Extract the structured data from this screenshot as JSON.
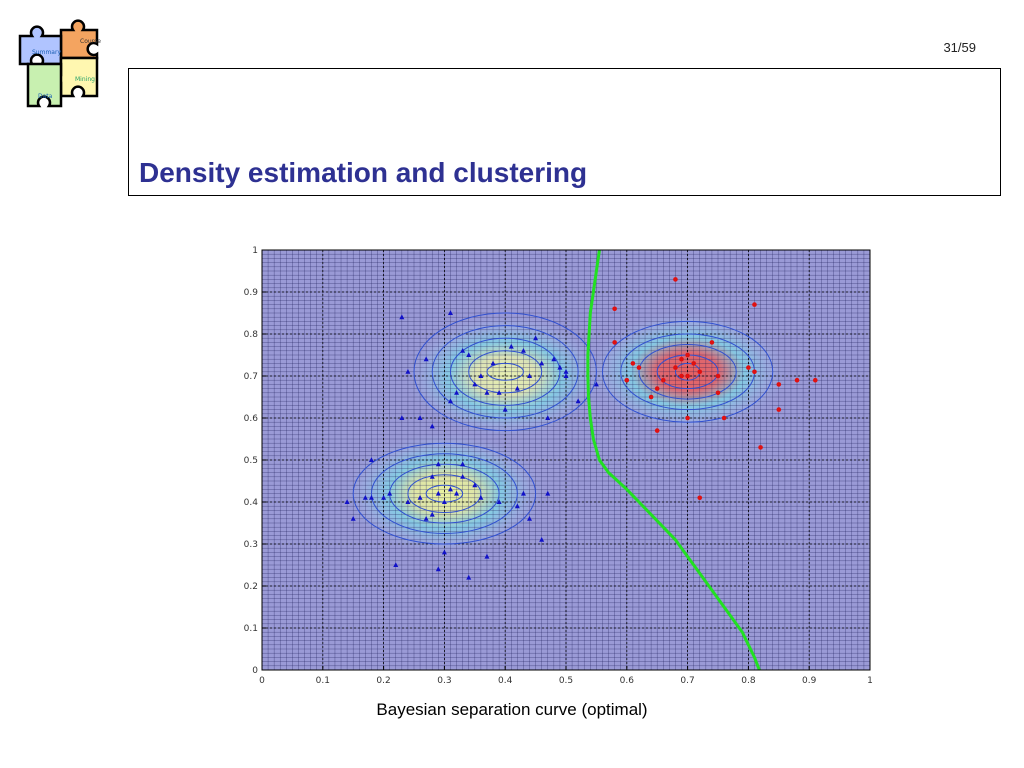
{
  "page_number": "31/59",
  "title": "Density estimation and clustering",
  "caption": "Bayesian separation curve (optimal)",
  "logo": {
    "pieces": [
      "Course",
      "Summary",
      "Mining",
      "Data"
    ],
    "colors": [
      "#f4a460",
      "#b0c4ff",
      "#fff7b0",
      "#c8f0b0"
    ]
  },
  "chart_data": {
    "type": "scatter",
    "title": "",
    "xlabel": "",
    "ylabel": "",
    "xlim": [
      0,
      1
    ],
    "ylim": [
      0,
      1
    ],
    "xticks": [
      "0",
      "0.1",
      "0.2",
      "0.3",
      "0.4",
      "0.5",
      "0.6",
      "0.7",
      "0.8",
      "0.9",
      "1"
    ],
    "yticks": [
      "0",
      "0.1",
      "0.2",
      "0.3",
      "0.4",
      "0.5",
      "0.6",
      "0.7",
      "0.8",
      "0.9",
      "1"
    ],
    "grid": true,
    "background_color": "#9a9ad6",
    "density_centers": [
      {
        "cx": 0.4,
        "cy": 0.7,
        "peak": "#e8f0b0"
      },
      {
        "cx": 0.3,
        "cy": 0.42,
        "peak": "#eaf2a0"
      },
      {
        "cx": 0.7,
        "cy": 0.71,
        "peak": "#e86060"
      }
    ],
    "contour_sets": [
      {
        "cx": 0.4,
        "cy": 0.71,
        "rx": [
          0.03,
          0.06,
          0.09,
          0.12,
          0.15
        ],
        "ry": [
          0.02,
          0.05,
          0.08,
          0.11,
          0.14
        ],
        "color": "#3050d0"
      },
      {
        "cx": 0.3,
        "cy": 0.42,
        "rx": [
          0.03,
          0.06,
          0.09,
          0.12,
          0.15
        ],
        "ry": [
          0.02,
          0.045,
          0.07,
          0.095,
          0.12
        ],
        "color": "#3050d0"
      },
      {
        "cx": 0.7,
        "cy": 0.71,
        "rx": [
          0.02,
          0.05,
          0.08,
          0.11,
          0.14
        ],
        "ry": [
          0.02,
          0.04,
          0.065,
          0.09,
          0.12
        ],
        "color": "#3050d0"
      }
    ],
    "series": [
      {
        "color": "#1010c8",
        "marker": "triangle",
        "points": [
          [
            0.23,
            0.84
          ],
          [
            0.31,
            0.85
          ],
          [
            0.27,
            0.74
          ],
          [
            0.24,
            0.71
          ],
          [
            0.33,
            0.76
          ],
          [
            0.34,
            0.75
          ],
          [
            0.38,
            0.73
          ],
          [
            0.35,
            0.68
          ],
          [
            0.37,
            0.66
          ],
          [
            0.39,
            0.66
          ],
          [
            0.42,
            0.67
          ],
          [
            0.44,
            0.7
          ],
          [
            0.46,
            0.73
          ],
          [
            0.48,
            0.74
          ],
          [
            0.49,
            0.72
          ],
          [
            0.5,
            0.71
          ],
          [
            0.5,
            0.7
          ],
          [
            0.45,
            0.79
          ],
          [
            0.43,
            0.76
          ],
          [
            0.41,
            0.77
          ],
          [
            0.36,
            0.7
          ],
          [
            0.4,
            0.62
          ],
          [
            0.47,
            0.6
          ],
          [
            0.52,
            0.64
          ],
          [
            0.55,
            0.68
          ],
          [
            0.31,
            0.64
          ],
          [
            0.32,
            0.66
          ],
          [
            0.26,
            0.6
          ],
          [
            0.28,
            0.58
          ],
          [
            0.23,
            0.6
          ],
          [
            0.15,
            0.36
          ],
          [
            0.18,
            0.41
          ],
          [
            0.17,
            0.41
          ],
          [
            0.2,
            0.41
          ],
          [
            0.21,
            0.42
          ],
          [
            0.24,
            0.4
          ],
          [
            0.26,
            0.41
          ],
          [
            0.27,
            0.36
          ],
          [
            0.28,
            0.37
          ],
          [
            0.29,
            0.42
          ],
          [
            0.3,
            0.4
          ],
          [
            0.31,
            0.43
          ],
          [
            0.32,
            0.42
          ],
          [
            0.33,
            0.46
          ],
          [
            0.33,
            0.49
          ],
          [
            0.35,
            0.44
          ],
          [
            0.36,
            0.41
          ],
          [
            0.39,
            0.4
          ],
          [
            0.42,
            0.39
          ],
          [
            0.43,
            0.42
          ],
          [
            0.44,
            0.36
          ],
          [
            0.46,
            0.31
          ],
          [
            0.47,
            0.42
          ],
          [
            0.37,
            0.27
          ],
          [
            0.3,
            0.28
          ],
          [
            0.29,
            0.24
          ],
          [
            0.34,
            0.22
          ],
          [
            0.22,
            0.25
          ],
          [
            0.18,
            0.5
          ],
          [
            0.14,
            0.4
          ],
          [
            0.29,
            0.49
          ],
          [
            0.28,
            0.46
          ]
        ]
      },
      {
        "color": "#e01010",
        "marker": "circle",
        "points": [
          [
            0.68,
            0.93
          ],
          [
            0.81,
            0.87
          ],
          [
            0.58,
            0.86
          ],
          [
            0.58,
            0.78
          ],
          [
            0.74,
            0.78
          ],
          [
            0.7,
            0.75
          ],
          [
            0.69,
            0.74
          ],
          [
            0.71,
            0.73
          ],
          [
            0.68,
            0.72
          ],
          [
            0.72,
            0.71
          ],
          [
            0.7,
            0.7
          ],
          [
            0.69,
            0.7
          ],
          [
            0.75,
            0.7
          ],
          [
            0.8,
            0.72
          ],
          [
            0.81,
            0.71
          ],
          [
            0.61,
            0.73
          ],
          [
            0.62,
            0.72
          ],
          [
            0.66,
            0.69
          ],
          [
            0.65,
            0.67
          ],
          [
            0.6,
            0.69
          ],
          [
            0.64,
            0.65
          ],
          [
            0.85,
            0.68
          ],
          [
            0.88,
            0.69
          ],
          [
            0.91,
            0.69
          ],
          [
            0.75,
            0.66
          ],
          [
            0.85,
            0.62
          ],
          [
            0.76,
            0.6
          ],
          [
            0.7,
            0.6
          ],
          [
            0.65,
            0.57
          ],
          [
            0.82,
            0.53
          ],
          [
            0.72,
            0.41
          ]
        ]
      }
    ],
    "separation_curve": {
      "color": "#22e022",
      "x": [
        0.555,
        0.55,
        0.545,
        0.54,
        0.538,
        0.536,
        0.536,
        0.537,
        0.54,
        0.545,
        0.555,
        0.57,
        0.585,
        0.6,
        0.62,
        0.64,
        0.66,
        0.68,
        0.69,
        0.7,
        0.71,
        0.72,
        0.73,
        0.745,
        0.76,
        0.775,
        0.79,
        0.8,
        0.81,
        0.818
      ],
      "y": [
        1.0,
        0.95,
        0.9,
        0.85,
        0.8,
        0.75,
        0.7,
        0.65,
        0.6,
        0.55,
        0.5,
        0.47,
        0.45,
        0.43,
        0.4,
        0.37,
        0.34,
        0.31,
        0.29,
        0.27,
        0.25,
        0.23,
        0.21,
        0.18,
        0.15,
        0.12,
        0.09,
        0.06,
        0.03,
        0.0
      ]
    }
  }
}
